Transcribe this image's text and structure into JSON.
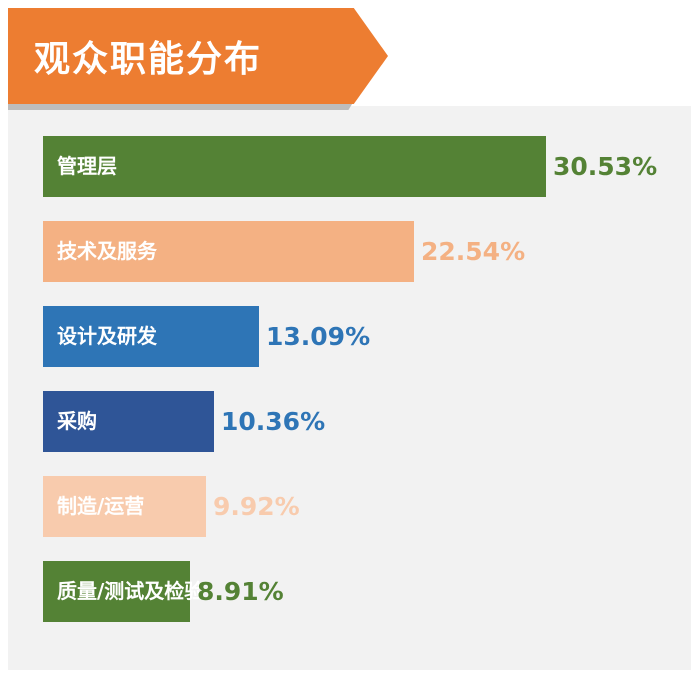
{
  "title": "观众职能分布",
  "colors": {
    "banner": "#ed7d31",
    "panel": "#f2f2f2"
  },
  "chart_data": {
    "type": "bar",
    "orientation": "horizontal",
    "categories": [
      "管理层",
      "技术及服务",
      "设计及研发",
      "采购",
      "制造/运营",
      "质量/测试及检验"
    ],
    "values": [
      30.53,
      22.54,
      13.09,
      10.36,
      9.92,
      8.91
    ],
    "value_labels": [
      "30.53%",
      "22.54%",
      "13.09%",
      "10.36%",
      "9.92%",
      "8.91%"
    ],
    "bar_colors": [
      "#548235",
      "#f4b183",
      "#2e75b6",
      "#2f5597",
      "#f8cbad",
      "#548235"
    ],
    "value_label_colors": [
      "#548235",
      "#f4b183",
      "#2e75b6",
      "#2e75b6",
      "#f8cbad",
      "#548235"
    ],
    "xlim": [
      0,
      30.53
    ],
    "grid": false,
    "legend": "none"
  }
}
